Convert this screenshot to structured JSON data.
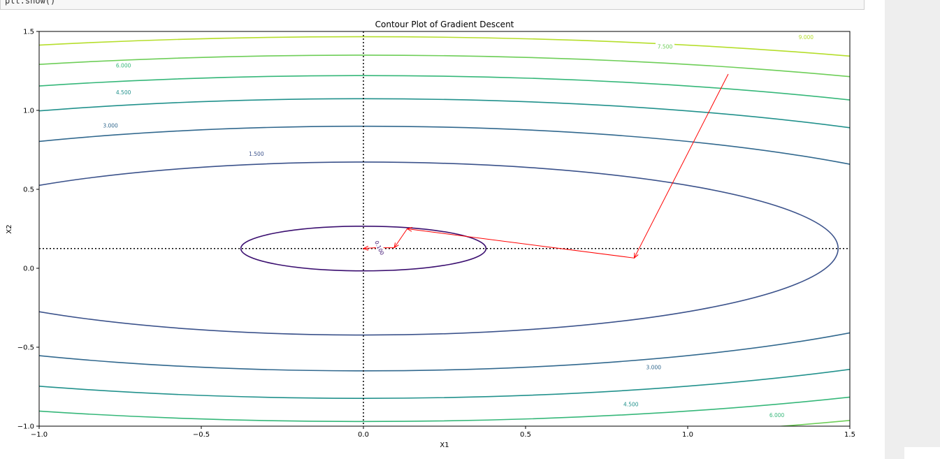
{
  "code_cell": {
    "text": "plt.show()"
  },
  "chart_data": {
    "type": "contour",
    "title": "Contour Plot of Gradient Descent",
    "xlabel": "X1",
    "ylabel": "X2",
    "xlim": [
      -1.0,
      1.5
    ],
    "ylim": [
      -1.0,
      1.5
    ],
    "xticks": [
      -1.0,
      -0.5,
      0.0,
      0.5,
      1.0,
      1.5
    ],
    "yticks": [
      -1.0,
      -0.5,
      0.0,
      0.5,
      1.0,
      1.5
    ],
    "xtick_labels": [
      "−1.0",
      "−0.5",
      "0.0",
      "0.5",
      "1.0",
      "1.5"
    ],
    "ytick_labels": [
      "−1.0",
      "−0.5",
      "0.0",
      "0.5",
      "1.0",
      "1.5"
    ],
    "function": {
      "center": [
        0.0,
        0.125
      ],
      "a": 0.7,
      "b": 5.0
    },
    "levels": [
      {
        "value": 0.1,
        "label": "0.100",
        "color": "#3b0f70"
      },
      {
        "value": 1.5,
        "label": "1.500",
        "color": "#3b528b"
      },
      {
        "value": 3.0,
        "label": "3.000",
        "color": "#31688e"
      },
      {
        "value": 4.5,
        "label": "4.500",
        "color": "#21918c"
      },
      {
        "value": 6.0,
        "label": "6.000",
        "color": "#35b779"
      },
      {
        "value": 7.5,
        "label": "7.500",
        "color": "#6ece58"
      },
      {
        "value": 9.0,
        "label": "9.000",
        "color": "#b5de2b"
      }
    ],
    "contour_labels": [
      {
        "level": 1.5,
        "x": -0.33,
        "y": 0.725
      },
      {
        "level": 3.0,
        "x": -0.78,
        "y": 0.905
      },
      {
        "level": 4.5,
        "x": -0.74,
        "y": 1.115
      },
      {
        "level": 6.0,
        "x": -0.74,
        "y": 1.285
      },
      {
        "level": 3.0,
        "x": 0.895,
        "y": -0.625
      },
      {
        "level": 4.5,
        "x": 0.825,
        "y": -0.86
      },
      {
        "level": 6.0,
        "x": 1.275,
        "y": -0.93
      },
      {
        "level": 7.5,
        "x": 0.93,
        "y": 1.405
      },
      {
        "level": 9.0,
        "x": 1.365,
        "y": 1.465
      },
      {
        "level": 0.1,
        "x": 0.05,
        "y": 0.13,
        "rotate": 65
      }
    ],
    "reference_lines": {
      "x": 0.0,
      "y": 0.125,
      "color": "#000000"
    },
    "gd_path": {
      "color": "#ff0000",
      "points": [
        [
          1.125,
          1.23
        ],
        [
          0.835,
          0.065
        ],
        [
          0.135,
          0.25
        ],
        [
          0.095,
          0.13
        ],
        [
          0.035,
          0.13
        ],
        [
          0.0,
          0.125
        ]
      ]
    }
  }
}
